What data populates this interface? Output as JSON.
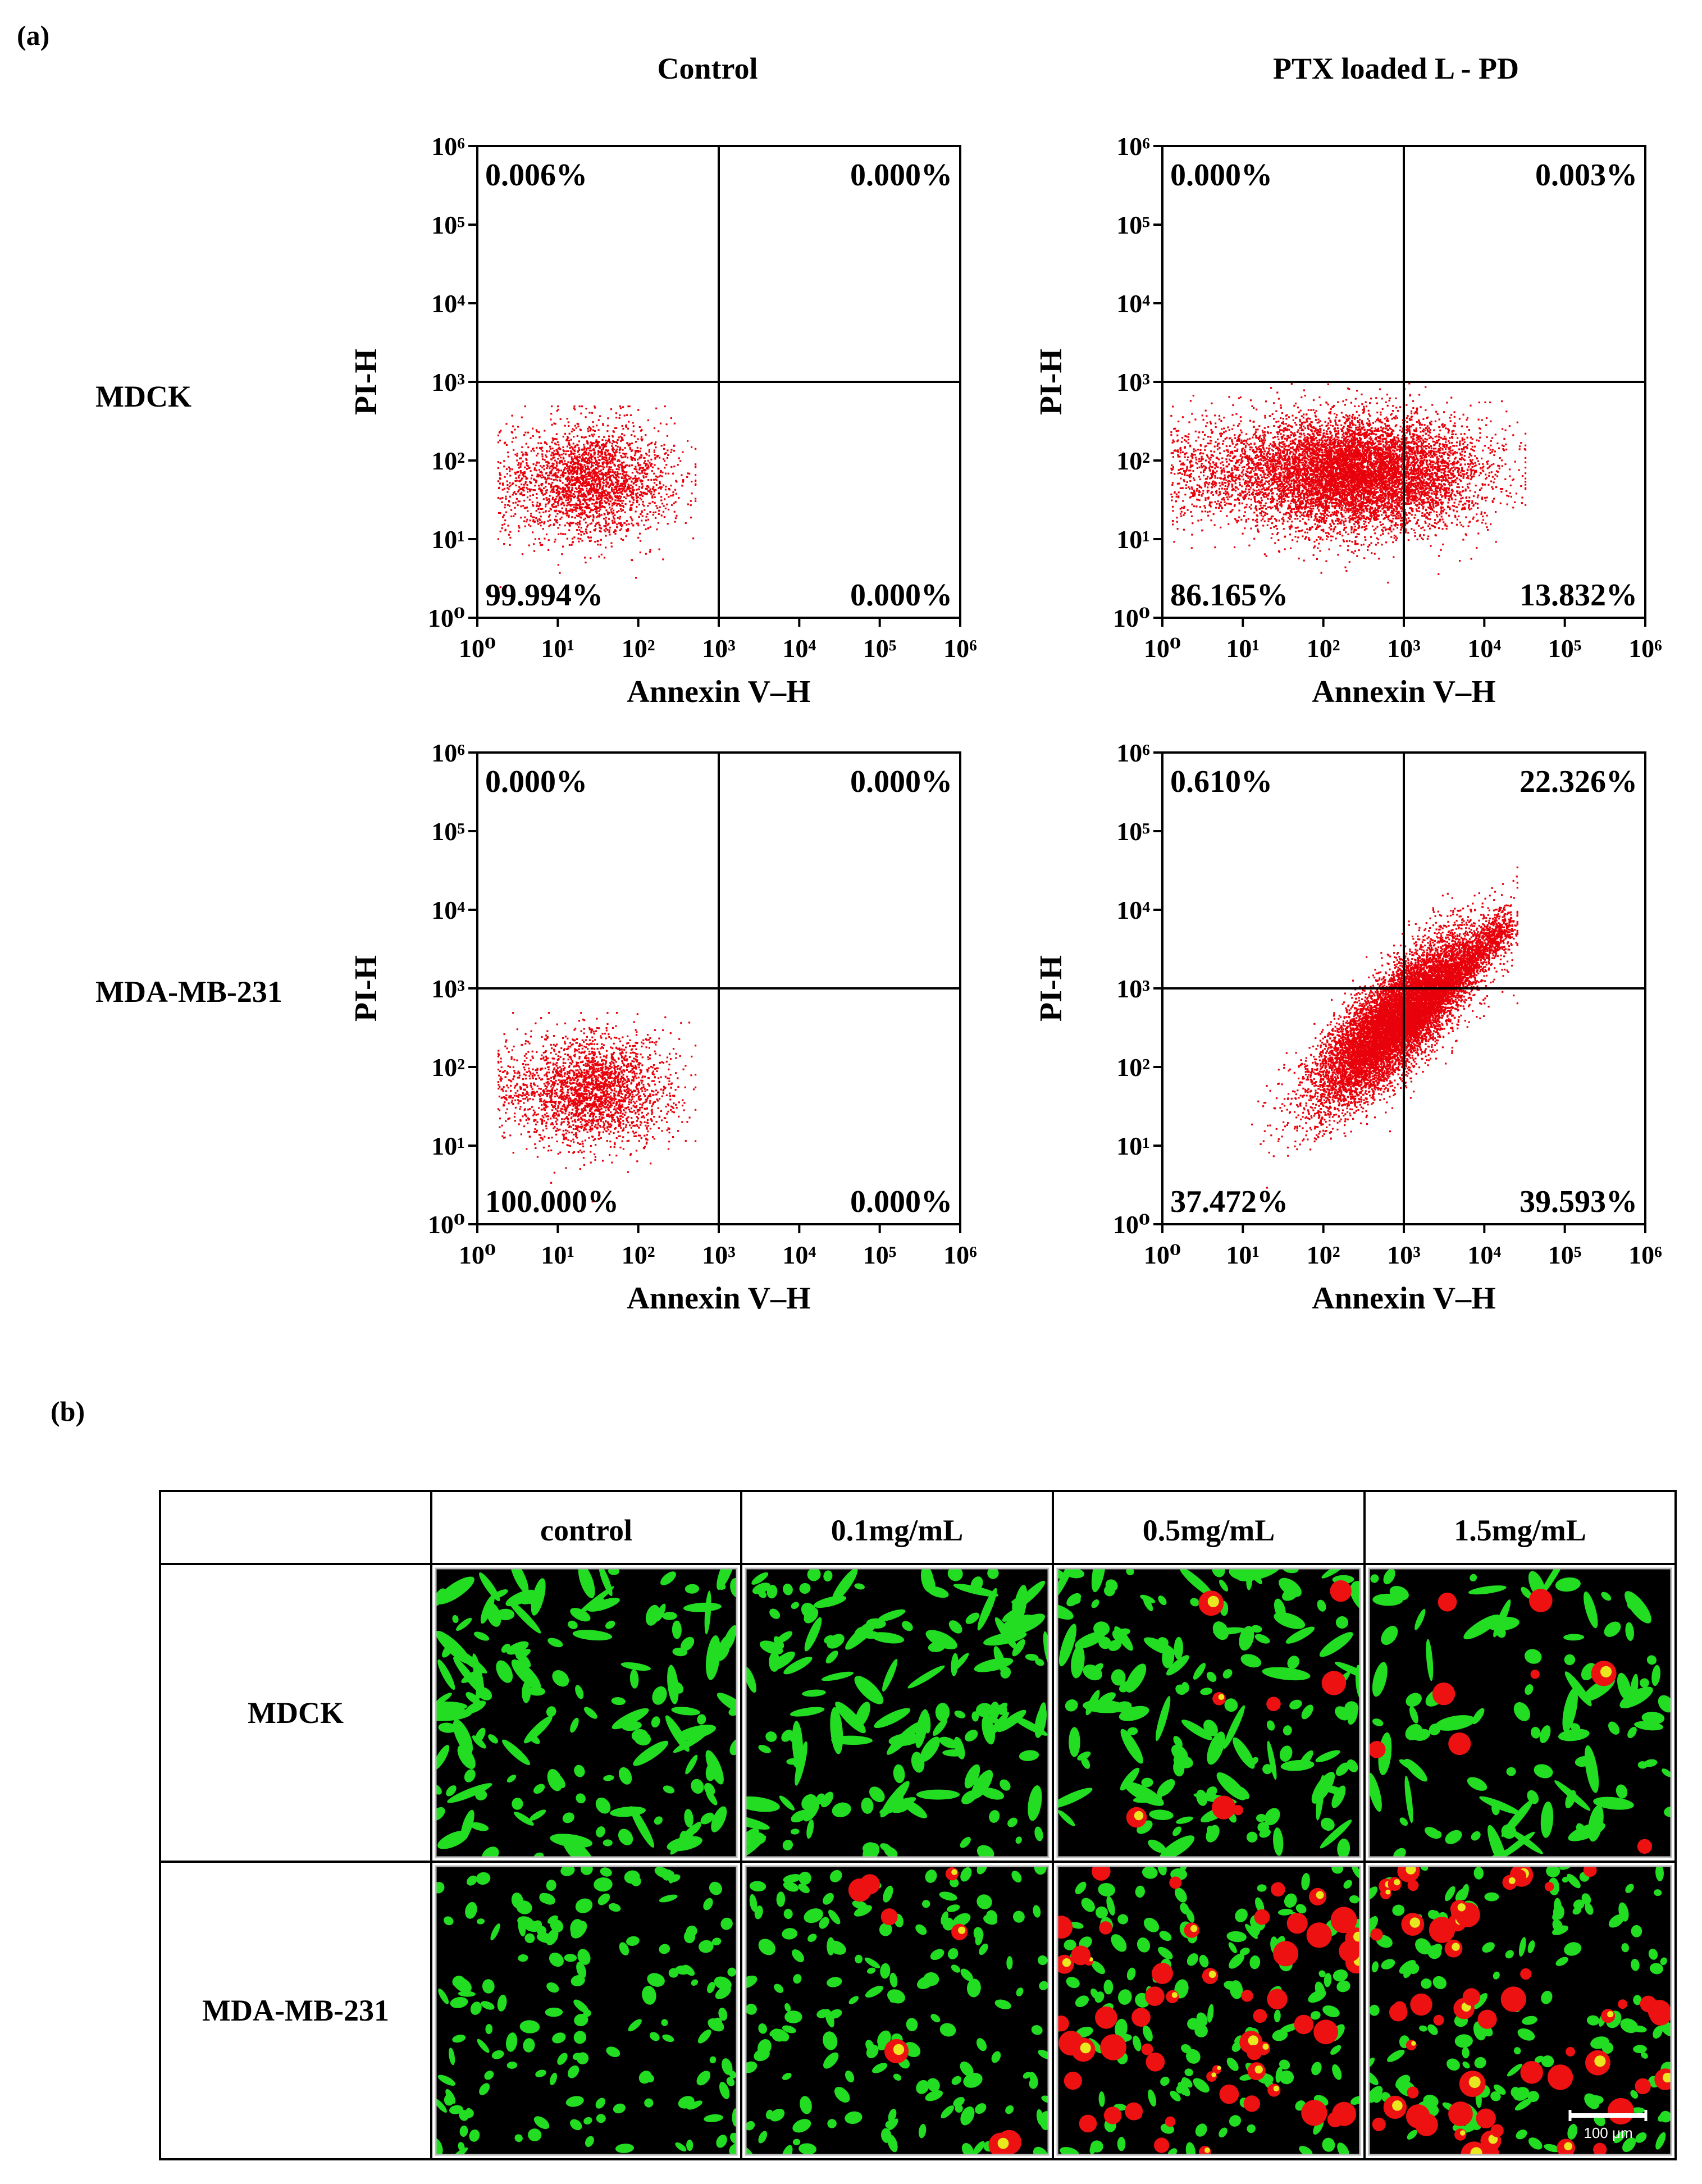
{
  "panel_a": {
    "label": "(a)",
    "col_headers": [
      "Control",
      "PTX loaded L - PD"
    ],
    "row_labels": [
      "MDCK",
      "MDA-MB-231"
    ],
    "xlabel": "Annexin V–H",
    "ylabel": "PI-H",
    "tick_labels": [
      "10⁰",
      "10¹",
      "10²",
      "10³",
      "10⁴",
      "10⁵",
      "10⁶"
    ]
  },
  "chart_data": [
    {
      "type": "scatter",
      "row": "MDCK",
      "column": "Control",
      "xlabel": "Annexin V–H",
      "ylabel": "PI-H",
      "x_scale": "log",
      "y_scale": "log",
      "xlim": [
        1,
        1000000
      ],
      "ylim": [
        1,
        1000000
      ],
      "gate": {
        "x": 1000,
        "y": 1000
      },
      "quadrants": {
        "upper_left": "0.006%",
        "upper_right": "0.000%",
        "lower_left": "99.994%",
        "lower_right": "0.000%"
      },
      "cloud": {
        "center_log": [
          1.5,
          1.75
        ],
        "spread_log": [
          0.45,
          0.35
        ],
        "x_range_log": [
          0.25,
          2.7
        ],
        "y_range_log": [
          0.4,
          2.7
        ],
        "density": "medium",
        "color": "#e8000b"
      }
    },
    {
      "type": "scatter",
      "row": "MDCK",
      "column": "PTX loaded L - PD",
      "xlabel": "Annexin V–H",
      "ylabel": "PI-H",
      "x_scale": "log",
      "y_scale": "log",
      "xlim": [
        1,
        1000000
      ],
      "ylim": [
        1,
        1000000
      ],
      "gate": {
        "x": 1000,
        "y": 1000
      },
      "quadrants": {
        "upper_left": "0.000%",
        "upper_right": "0.003%",
        "lower_left": "86.165%",
        "lower_right": "13.832%"
      },
      "cloud": {
        "center_log": [
          2.5,
          1.85
        ],
        "spread_log": [
          0.7,
          0.35
        ],
        "x_range_log": [
          0.1,
          4.5
        ],
        "y_range_log": [
          0.0,
          3.3
        ],
        "density": "high",
        "color": "#e8000b"
      }
    },
    {
      "type": "scatter",
      "row": "MDA-MB-231",
      "column": "Control",
      "xlabel": "Annexin V–H",
      "ylabel": "PI-H",
      "x_scale": "log",
      "y_scale": "log",
      "xlim": [
        1,
        1000000
      ],
      "ylim": [
        1,
        1000000
      ],
      "gate": {
        "x": 1000,
        "y": 1000
      },
      "quadrants": {
        "upper_left": "0.000%",
        "upper_right": "0.000%",
        "lower_left": "100.000%",
        "lower_right": "0.000%"
      },
      "cloud": {
        "center_log": [
          1.5,
          1.7
        ],
        "spread_log": [
          0.45,
          0.35
        ],
        "x_range_log": [
          0.25,
          2.7
        ],
        "y_range_log": [
          0.3,
          2.7
        ],
        "density": "medium",
        "color": "#e8000b"
      }
    },
    {
      "type": "scatter",
      "row": "MDA-MB-231",
      "column": "PTX loaded L - PD",
      "xlabel": "Annexin V–H",
      "ylabel": "PI-H",
      "x_scale": "log",
      "y_scale": "log",
      "xlim": [
        1,
        1000000
      ],
      "ylim": [
        1,
        1000000
      ],
      "gate": {
        "x": 1000,
        "y": 1000
      },
      "quadrants": {
        "upper_left": "0.610%",
        "upper_right": "22.326%",
        "lower_left": "37.472%",
        "lower_right": "39.593%"
      },
      "cloud": {
        "center_log": [
          2.9,
          2.6
        ],
        "spread_log": [
          0.45,
          0.45
        ],
        "x_range_log": [
          0.0,
          4.4
        ],
        "y_range_log": [
          0.0,
          4.55
        ],
        "density": "very-high",
        "diagonal": true,
        "color": "#e8000b"
      }
    }
  ],
  "panel_b": {
    "label": "(b)",
    "table": {
      "headers": [
        "",
        "control",
        "0.1mg/mL",
        "0.5mg/mL",
        "1.5mg/mL"
      ],
      "rows": [
        {
          "label": "MDCK",
          "cells": [
            {
              "concentration": "control",
              "green_cells": "dense",
              "red_cells": "none"
            },
            {
              "concentration": "0.1mg/mL",
              "green_cells": "dense",
              "red_cells": "none"
            },
            {
              "concentration": "0.5mg/mL",
              "green_cells": "dense",
              "red_cells": "few"
            },
            {
              "concentration": "1.5mg/mL",
              "green_cells": "medium",
              "red_cells": "few"
            }
          ]
        },
        {
          "label": "MDA-MB-231",
          "cells": [
            {
              "concentration": "control",
              "green_cells": "dense",
              "red_cells": "none"
            },
            {
              "concentration": "0.1mg/mL",
              "green_cells": "dense",
              "red_cells": "few"
            },
            {
              "concentration": "0.5mg/mL",
              "green_cells": "dense",
              "red_cells": "many"
            },
            {
              "concentration": "1.5mg/mL",
              "green_cells": "dense",
              "red_cells": "many"
            }
          ]
        }
      ]
    },
    "scale_bar": "100 μm",
    "colors": {
      "live": "#22dd22",
      "dead": "#ee1111",
      "overlap": "#e8e820",
      "background": "#000000"
    }
  }
}
